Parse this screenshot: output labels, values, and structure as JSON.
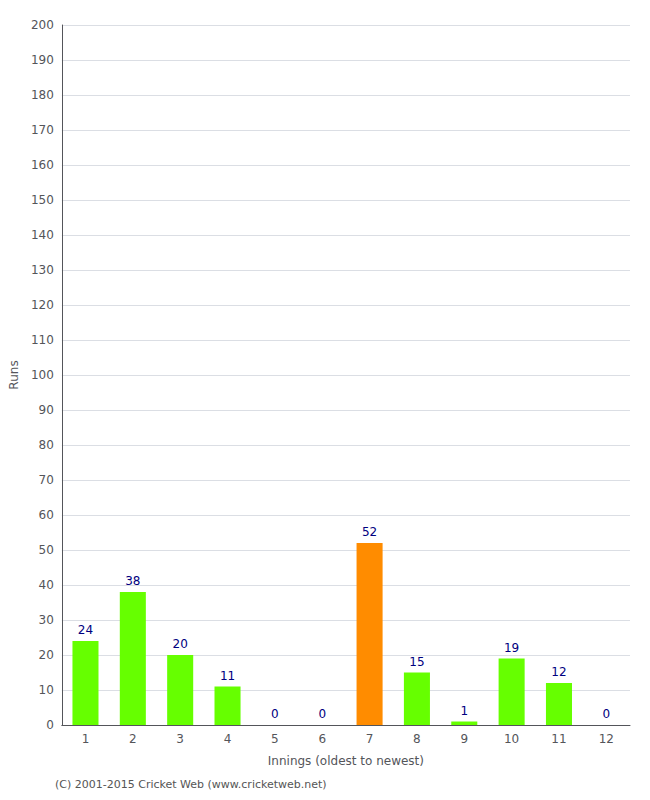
{
  "chart_data": {
    "type": "bar",
    "categories": [
      "1",
      "2",
      "3",
      "4",
      "5",
      "6",
      "7",
      "8",
      "9",
      "10",
      "11",
      "12"
    ],
    "values": [
      24,
      38,
      20,
      11,
      0,
      0,
      52,
      15,
      1,
      19,
      12,
      0
    ],
    "colors": [
      "#66ff00",
      "#66ff00",
      "#66ff00",
      "#66ff00",
      "#66ff00",
      "#66ff00",
      "#ff8c00",
      "#66ff00",
      "#66ff00",
      "#66ff00",
      "#66ff00",
      "#66ff00"
    ],
    "xlabel": "Innings (oldest to newest)",
    "ylabel": "Runs",
    "ylim": [
      0,
      200
    ],
    "yticks": [
      0,
      10,
      20,
      30,
      40,
      50,
      60,
      70,
      80,
      90,
      100,
      110,
      120,
      130,
      140,
      150,
      160,
      170,
      180,
      190,
      200
    ],
    "grid": true,
    "data_labels": true,
    "annotations": [
      "(C) 2001-2015 Cricket Web (www.cricketweb.net)"
    ]
  }
}
